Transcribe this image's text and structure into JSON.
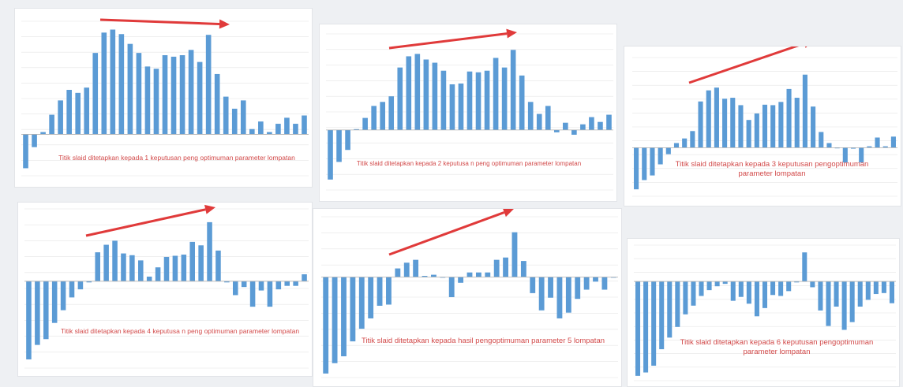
{
  "colors": {
    "bar": "#5b9bd5",
    "arrow": "#e03a3a",
    "caption": "#d24a4a",
    "grid": "#e6e6e6",
    "axis": "#b0b0b0"
  },
  "chart_data": [
    {
      "type": "bar",
      "title": "Titik slaid ditetapkan kepada 1 keputusan peng optimuman parameter lompatan",
      "values": [
        -0.45,
        -0.17,
        0.03,
        0.26,
        0.45,
        0.59,
        0.55,
        0.62,
        1.08,
        1.35,
        1.39,
        1.33,
        1.2,
        1.08,
        0.9,
        0.87,
        1.05,
        1.03,
        1.05,
        1.12,
        0.96,
        1.32,
        0.8,
        0.5,
        0.34,
        0.45,
        0.07,
        0.17,
        0.03,
        0.14,
        0.22,
        0.14,
        0.25
      ],
      "ylim": [
        -0.55,
        1.5
      ]
    },
    {
      "type": "bar",
      "title": "Titik slaid ditetapkan kepada 2 keputusa n peng optimuman parameter lompatan",
      "values": [
        -0.62,
        -0.4,
        -0.25,
        0.01,
        0.15,
        0.3,
        0.35,
        0.42,
        0.78,
        0.92,
        0.95,
        0.88,
        0.84,
        0.74,
        0.57,
        0.58,
        0.73,
        0.72,
        0.74,
        0.9,
        0.78,
        1.0,
        0.68,
        0.35,
        0.2,
        0.3,
        -0.03,
        0.09,
        -0.06,
        0.07,
        0.16,
        0.1,
        0.19
      ],
      "ylim": [
        -0.75,
        1.2
      ]
    },
    {
      "type": "bar",
      "title": "Titik slaid ditetapkan kepada 3 keputusan pengoptimuman parameter lompatan",
      "values": [
        -0.9,
        -0.7,
        -0.6,
        -0.36,
        -0.14,
        0.1,
        0.2,
        0.36,
        1.0,
        1.24,
        1.3,
        1.06,
        1.08,
        0.92,
        0.6,
        0.74,
        0.93,
        0.92,
        0.99,
        1.27,
        1.08,
        1.58,
        0.89,
        0.34,
        0.1,
        0.0,
        -0.32,
        -0.02,
        -0.32,
        0.03,
        0.22,
        0.03,
        0.24
      ],
      "ylim": [
        -1.05,
        1.95
      ]
    },
    {
      "type": "bar",
      "title": "Titik slaid ditetapkan kepada 4 keputusa n peng optimuman parameter lompatan",
      "values": [
        -1.35,
        -1.1,
        -1.0,
        -0.72,
        -0.5,
        -0.28,
        -0.14,
        -0.02,
        0.5,
        0.63,
        0.7,
        0.48,
        0.45,
        0.36,
        0.08,
        0.24,
        0.42,
        0.44,
        0.46,
        0.68,
        0.62,
        1.02,
        0.53,
        -0.02,
        -0.24,
        -0.1,
        -0.44,
        -0.16,
        -0.44,
        -0.14,
        -0.08,
        -0.08,
        0.12
      ],
      "ylim": [
        -1.5,
        1.25
      ]
    },
    {
      "type": "bar",
      "title": "Titik slaid ditetapkan kepada hasil pengoptimuman parameter 5 lompatan",
      "values": [
        -1.68,
        -1.5,
        -1.38,
        -1.12,
        -0.9,
        -0.72,
        -0.5,
        -0.48,
        0.15,
        0.25,
        0.3,
        0.02,
        0.04,
        0.0,
        -0.35,
        -0.1,
        0.08,
        0.08,
        0.08,
        0.3,
        0.34,
        0.78,
        0.28,
        -0.28,
        -0.58,
        -0.36,
        -0.72,
        -0.62,
        -0.38,
        -0.22,
        -0.08,
        -0.22,
        0.0
      ],
      "ylim": [
        -1.75,
        1.05
      ]
    },
    {
      "type": "bar",
      "title": "Titik slaid ditetapkan kepada 6 keputusan pengoptimuman parameter lompatan",
      "values": [
        -1.95,
        -1.88,
        -1.74,
        -1.4,
        -1.16,
        -0.94,
        -0.68,
        -0.5,
        -0.3,
        -0.18,
        -0.1,
        -0.05,
        -0.4,
        -0.32,
        -0.46,
        -0.72,
        -0.55,
        -0.28,
        -0.3,
        -0.2,
        -0.02,
        0.6,
        -0.12,
        -0.6,
        -0.92,
        -0.52,
        -1.0,
        -0.84,
        -0.52,
        -0.38,
        -0.26,
        -0.24,
        -0.45
      ],
      "ylim": [
        -2.05,
        0.75
      ]
    }
  ]
}
